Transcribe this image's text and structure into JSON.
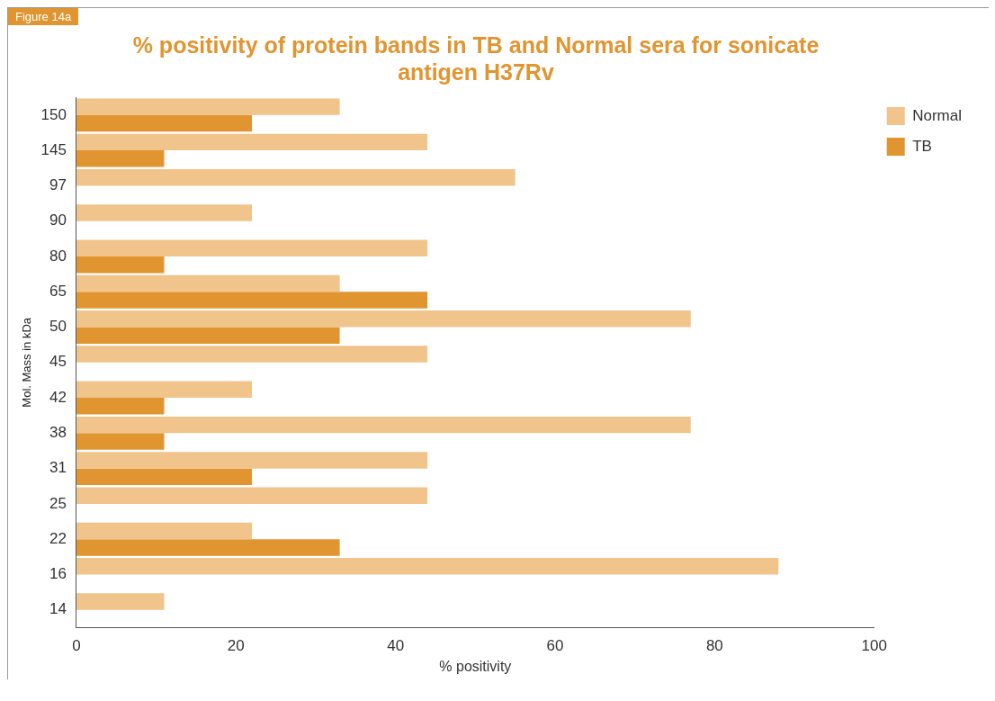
{
  "chart_data": {
    "type": "bar",
    "orientation": "horizontal",
    "title": "% positivity of protein bands in TB and Normal sera for sonicate antigen H37Rv",
    "xlabel": "% positivity",
    "ylabel": "Mol. Mass in kDa",
    "annotations": [
      "Figure 14a"
    ],
    "categories": [
      "150",
      "145",
      "97",
      "90",
      "80",
      "65",
      "50",
      "45",
      "42",
      "38",
      "31",
      "25",
      "22",
      "16",
      "14"
    ],
    "series": [
      {
        "name": "Normal",
        "color": "#f0c48a",
        "values": [
          33,
          44,
          55,
          22,
          44,
          33,
          77,
          44,
          22,
          77,
          44,
          44,
          22,
          88,
          11
        ]
      },
      {
        "name": "TB",
        "color": "#e09530",
        "values": [
          22,
          11,
          null,
          null,
          11,
          44,
          33,
          null,
          11,
          11,
          22,
          null,
          33,
          null,
          null
        ]
      }
    ],
    "xlim": [
      0,
      100
    ],
    "xticks": [
      0,
      20,
      40,
      60,
      80,
      100
    ],
    "grid": false,
    "legend": "top right"
  }
}
